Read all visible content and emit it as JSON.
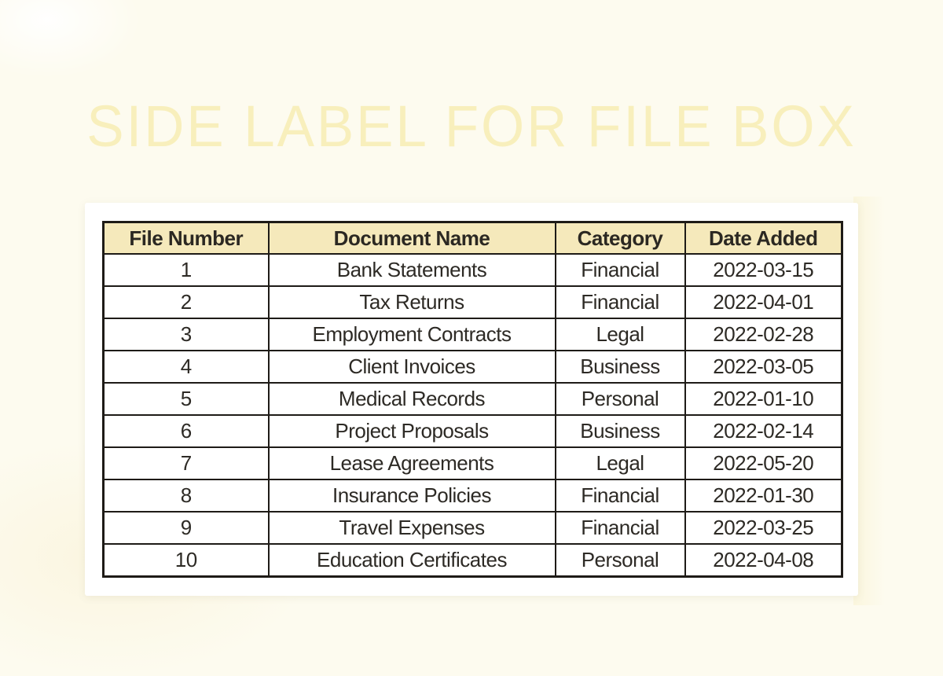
{
  "title": "SIDE LABEL FOR FILE BOX",
  "colors": {
    "page-bg": "#fdfbef",
    "title-text": "#f8efbc",
    "card-bg": "#ffffff",
    "header-bg": "#f5e9bb",
    "header-text": "#2b2822",
    "cell-text": "#2d2a25",
    "table-border": "#1e1b17"
  },
  "table": {
    "columns": [
      "File Number",
      "Document Name",
      "Category",
      "Date Added"
    ],
    "rows": [
      [
        "1",
        "Bank Statements",
        "Financial",
        "2022-03-15"
      ],
      [
        "2",
        "Tax Returns",
        "Financial",
        "2022-04-01"
      ],
      [
        "3",
        "Employment Contracts",
        "Legal",
        "2022-02-28"
      ],
      [
        "4",
        "Client Invoices",
        "Business",
        "2022-03-05"
      ],
      [
        "5",
        "Medical Records",
        "Personal",
        "2022-01-10"
      ],
      [
        "6",
        "Project Proposals",
        "Business",
        "2022-02-14"
      ],
      [
        "7",
        "Lease Agreements",
        "Legal",
        "2022-05-20"
      ],
      [
        "8",
        "Insurance Policies",
        "Financial",
        "2022-01-30"
      ],
      [
        "9",
        "Travel Expenses",
        "Financial",
        "2022-03-25"
      ],
      [
        "10",
        "Education Certificates",
        "Personal",
        "2022-04-08"
      ]
    ]
  }
}
